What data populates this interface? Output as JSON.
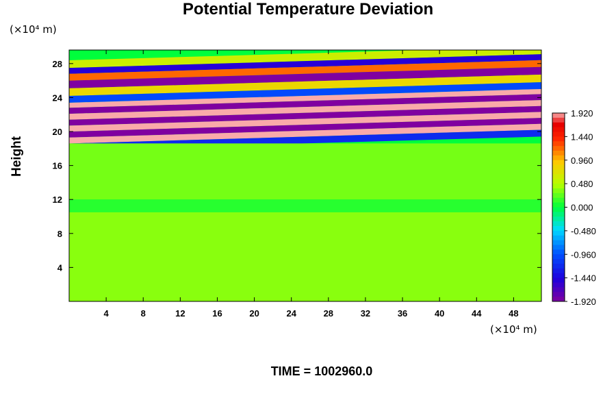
{
  "chart_data": {
    "type": "heatmap",
    "title": "Potential Temperature Deviation",
    "ylabel": "Height",
    "y_unit": "(×10⁴ m)",
    "x_unit": "(×10⁴ m)",
    "x_ticks": [
      4,
      8,
      12,
      16,
      20,
      24,
      28,
      32,
      36,
      40,
      44,
      48
    ],
    "y_ticks": [
      4,
      8,
      12,
      16,
      20,
      24,
      28
    ],
    "xlim": [
      0,
      51
    ],
    "ylim": [
      0,
      29.6
    ],
    "colorbar": {
      "min": -1.92,
      "max": 1.92,
      "tick_labels": [
        "1.920",
        "1.440",
        "0.960",
        "0.480",
        "0.000",
        "-0.480",
        "-0.960",
        "-1.440",
        "-1.920"
      ],
      "tick_values": [
        1.92,
        1.44,
        0.96,
        0.48,
        0.0,
        -0.48,
        -0.96,
        -1.44,
        -1.92
      ]
    },
    "field_bands": [
      {
        "y": 29.2,
        "value": 0.6
      },
      {
        "y": 28.3,
        "value": -1.5
      },
      {
        "y": 27.6,
        "value": 1.2
      },
      {
        "y": 26.8,
        "value": -1.92
      },
      {
        "y": 25.9,
        "value": 0.8
      },
      {
        "y": 25.0,
        "value": -1.0
      },
      {
        "y": 24.2,
        "value": 1.92
      },
      {
        "y": 23.6,
        "value": -1.92
      },
      {
        "y": 22.9,
        "value": 1.92
      },
      {
        "y": 22.2,
        "value": -1.92
      },
      {
        "y": 21.5,
        "value": 1.92
      },
      {
        "y": 20.8,
        "value": -1.92
      },
      {
        "y": 20.1,
        "value": 1.92
      },
      {
        "y": 19.4,
        "value": -1.2
      },
      {
        "y": 18.6,
        "value": 0.3
      },
      {
        "y": 12.0,
        "value": 0.1
      },
      {
        "y": 10.5,
        "value": 0.35
      },
      {
        "y": 0.0,
        "value": 0.0
      }
    ],
    "time_label": "TIME = 1002960.0"
  },
  "colors": {
    "background": "#ffffff",
    "frame": "#000000"
  }
}
